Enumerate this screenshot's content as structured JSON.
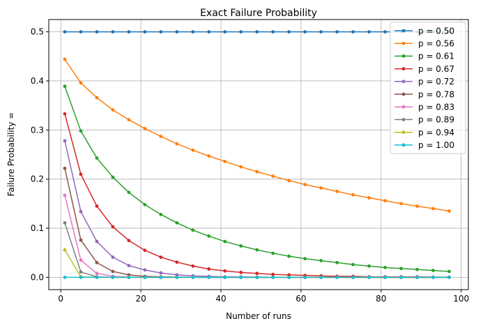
{
  "chart_data": {
    "type": "line",
    "title": "Exact Failure Probability",
    "xlabel": "Number of runs",
    "ylabel": "Failure Probability =",
    "xlim": [
      -3,
      101.8
    ],
    "ylim": [
      -0.025,
      0.525
    ],
    "xticks": [
      0,
      20,
      40,
      60,
      80,
      100
    ],
    "xtick_labels": [
      "0",
      "20",
      "40",
      "60",
      "80",
      "100"
    ],
    "yticks": [
      0.0,
      0.1,
      0.2,
      0.3,
      0.4,
      0.5
    ],
    "ytick_labels": [
      "0.0",
      "0.1",
      "0.2",
      "0.3",
      "0.4",
      "0.5"
    ],
    "grid": true,
    "legend": "top-right",
    "x": [
      1,
      5,
      9,
      13,
      17,
      21,
      25,
      29,
      33,
      37,
      41,
      45,
      49,
      53,
      57,
      61,
      65,
      69,
      73,
      77,
      81,
      85,
      89,
      93,
      97
    ],
    "series": [
      {
        "name": "p = 0.50",
        "color": "#1f77b4",
        "values": [
          0.5,
          0.5,
          0.5,
          0.5,
          0.5,
          0.5,
          0.5,
          0.5,
          0.5,
          0.5,
          0.5,
          0.5,
          0.5,
          0.5,
          0.5,
          0.5,
          0.5,
          0.5,
          0.5,
          0.5,
          0.5,
          0.5,
          0.5,
          0.5,
          0.5
        ]
      },
      {
        "name": "p = 0.56",
        "color": "#ff7f0e",
        "values": [
          0.444,
          0.396,
          0.366,
          0.341,
          0.321,
          0.303,
          0.287,
          0.272,
          0.259,
          0.247,
          0.236,
          0.225,
          0.215,
          0.206,
          0.197,
          0.189,
          0.182,
          0.175,
          0.168,
          0.162,
          0.156,
          0.15,
          0.145,
          0.14,
          0.135
        ]
      },
      {
        "name": "p = 0.61",
        "color": "#2ca02c",
        "values": [
          0.389,
          0.298,
          0.243,
          0.204,
          0.173,
          0.148,
          0.128,
          0.111,
          0.096,
          0.084,
          0.073,
          0.064,
          0.056,
          0.049,
          0.043,
          0.038,
          0.034,
          0.03,
          0.026,
          0.023,
          0.02,
          0.018,
          0.016,
          0.014,
          0.012
        ]
      },
      {
        "name": "p = 0.67",
        "color": "#d62728",
        "values": [
          0.333,
          0.21,
          0.145,
          0.103,
          0.075,
          0.055,
          0.041,
          0.031,
          0.023,
          0.017,
          0.013,
          0.01,
          0.008,
          0.006,
          0.005,
          0.004,
          0.003,
          0.002,
          0.002,
          0.001,
          0.001,
          0.001,
          0.001,
          0.0005,
          0.0004
        ]
      },
      {
        "name": "p = 0.72",
        "color": "#9467bd",
        "values": [
          0.278,
          0.134,
          0.073,
          0.041,
          0.024,
          0.015,
          0.009,
          0.005,
          0.003,
          0.002,
          0.001,
          0.001,
          0.0005,
          0.0003,
          0.0002,
          0.0001,
          0.0001,
          0.0,
          0.0,
          0.0,
          0.0,
          0.0,
          0.0,
          0.0,
          0.0
        ]
      },
      {
        "name": "p = 0.78",
        "color": "#8c564b",
        "values": [
          0.222,
          0.076,
          0.03,
          0.012,
          0.005,
          0.002,
          0.001,
          0.0005,
          0.0002,
          0.0001,
          0.0,
          0.0,
          0.0,
          0.0,
          0.0,
          0.0,
          0.0,
          0.0,
          0.0,
          0.0,
          0.0,
          0.0,
          0.0,
          0.0,
          0.0
        ]
      },
      {
        "name": "p = 0.83",
        "color": "#e377c2",
        "values": [
          0.167,
          0.035,
          0.008,
          0.002,
          0.0005,
          0.0001,
          0.0,
          0.0,
          0.0,
          0.0,
          0.0,
          0.0,
          0.0,
          0.0,
          0.0,
          0.0,
          0.0,
          0.0,
          0.0,
          0.0,
          0.0,
          0.0,
          0.0,
          0.0,
          0.0
        ]
      },
      {
        "name": "p = 0.89",
        "color": "#7f7f7f",
        "values": [
          0.111,
          0.011,
          0.001,
          0.0001,
          0.0,
          0.0,
          0.0,
          0.0,
          0.0,
          0.0,
          0.0,
          0.0,
          0.0,
          0.0,
          0.0,
          0.0,
          0.0,
          0.0,
          0.0,
          0.0,
          0.0,
          0.0,
          0.0,
          0.0,
          0.0
        ]
      },
      {
        "name": "p = 0.94",
        "color": "#bcbd22",
        "values": [
          0.056,
          0.001,
          0.0,
          0.0,
          0.0,
          0.0,
          0.0,
          0.0,
          0.0,
          0.0,
          0.0,
          0.0,
          0.0,
          0.0,
          0.0,
          0.0,
          0.0,
          0.0,
          0.0,
          0.0,
          0.0,
          0.0,
          0.0,
          0.0,
          0.0
        ]
      },
      {
        "name": "p = 1.00",
        "color": "#17becf",
        "values": [
          0.0,
          0.0,
          0.0,
          0.0,
          0.0,
          0.0,
          0.0,
          0.0,
          0.0,
          0.0,
          0.0,
          0.0,
          0.0,
          0.0,
          0.0,
          0.0,
          0.0,
          0.0,
          0.0,
          0.0,
          0.0,
          0.0,
          0.0,
          0.0,
          0.0
        ]
      }
    ]
  }
}
